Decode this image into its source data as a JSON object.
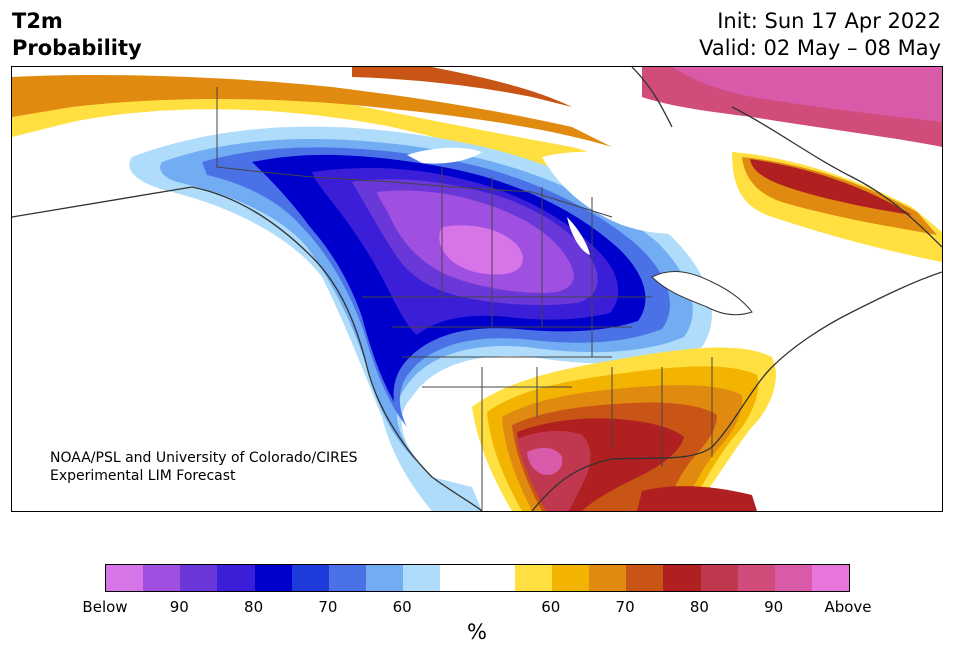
{
  "title": {
    "line1": "T2m",
    "line2": "Probability"
  },
  "init": "Init: Sun 17 Apr 2022",
  "valid": "Valid: 02 May – 08 May",
  "credit": {
    "line1": "NOAA/PSL and University of Colorado/CIRES",
    "line2": "Experimental LIM Forecast"
  },
  "colorbar": {
    "colors": [
      "#d674e8",
      "#a050e0",
      "#6a38d8",
      "#3a1ed8",
      "#0000cc",
      "#1e3ad8",
      "#4a72e6",
      "#72acf2",
      "#aedcfa",
      "#ffffff",
      "#ffffff",
      "#ffe040",
      "#f2b400",
      "#e08a10",
      "#c85416",
      "#b02020",
      "#c03850",
      "#d04c7a",
      "#d85aa8",
      "#e676da"
    ],
    "tick_labels": [
      "Below",
      "90",
      "80",
      "70",
      "60",
      "60",
      "70",
      "80",
      "90",
      "Above"
    ],
    "unit": "%"
  },
  "legend_colors": {
    "below_extreme": "#d674e8",
    "below_strong": "#0000cc",
    "near_normal": "#ffffff",
    "above_strong": "#b02020",
    "above_extreme": "#e676da"
  }
}
